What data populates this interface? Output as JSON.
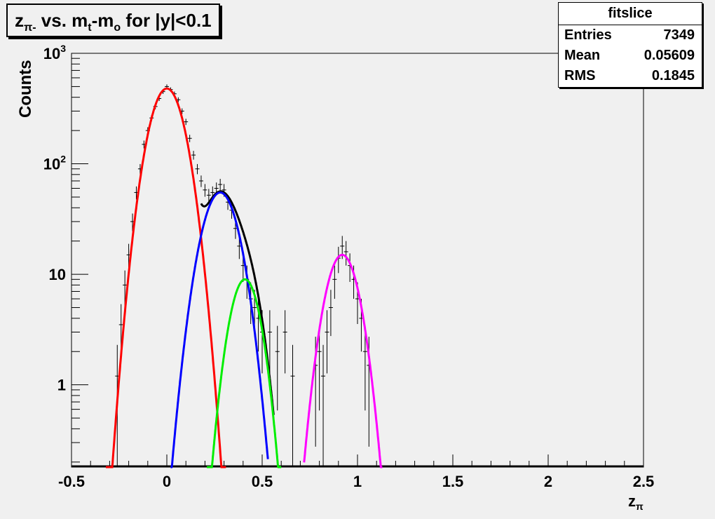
{
  "title": {
    "main": "z",
    "sub": "π-",
    "rest1": " vs. m",
    "sub2": "t",
    "rest2": "-m",
    "sub3": "o",
    "rest3": " for |y|<0.1"
  },
  "stats": {
    "name": "fitslice",
    "rows": [
      {
        "label": "Entries",
        "value": "7349"
      },
      {
        "label": "Mean",
        "value": "0.05609"
      },
      {
        "label": "RMS",
        "value": "0.1845"
      }
    ]
  },
  "chart_data": {
    "type": "line",
    "xlabel": "z",
    "xlabel_sub": "π",
    "ylabel": "Counts",
    "xlim": [
      -0.5,
      2.5
    ],
    "ylim": [
      0.18,
      1000
    ],
    "log_y": true,
    "x_ticks": [
      -0.5,
      0,
      0.5,
      1,
      1.5,
      2,
      2.5
    ],
    "x_tick_labels": [
      "-0.5",
      "0",
      "0.5",
      "1",
      "1.5",
      "2",
      "2.5"
    ],
    "y_ticks": [
      1,
      10,
      100,
      1000
    ],
    "y_tick_labels": [
      "1",
      "10",
      "10²",
      "10³"
    ],
    "series": [
      {
        "color": "#ff0000",
        "kind": "gaussian",
        "amplitude": 480,
        "mean": 0.0,
        "sigma": 0.072,
        "range": [
          -0.32,
          0.31
        ]
      },
      {
        "color": "#0000ff",
        "kind": "gaussian",
        "amplitude": 55,
        "mean": 0.28,
        "sigma": 0.075,
        "range": [
          0.02,
          0.53
        ]
      },
      {
        "color": "#00ee00",
        "kind": "gaussian",
        "amplitude": 9,
        "mean": 0.41,
        "sigma": 0.062,
        "range": [
          0.21,
          0.6
        ]
      },
      {
        "color": "#ff00ff",
        "kind": "gaussian",
        "amplitude": 15,
        "mean": 0.92,
        "sigma": 0.068,
        "range": [
          0.72,
          1.13
        ]
      },
      {
        "color": "#000000",
        "kind": "sum"
      }
    ],
    "points": [
      {
        "x": -0.26,
        "y": 1.2
      },
      {
        "x": -0.24,
        "y": 3.5
      },
      {
        "x": -0.22,
        "y": 8
      },
      {
        "x": -0.2,
        "y": 15
      },
      {
        "x": -0.18,
        "y": 30
      },
      {
        "x": -0.16,
        "y": 55
      },
      {
        "x": -0.14,
        "y": 90
      },
      {
        "x": -0.12,
        "y": 150
      },
      {
        "x": -0.1,
        "y": 200
      },
      {
        "x": -0.08,
        "y": 260
      },
      {
        "x": -0.06,
        "y": 330
      },
      {
        "x": -0.04,
        "y": 390
      },
      {
        "x": -0.02,
        "y": 450
      },
      {
        "x": 0.0,
        "y": 500
      },
      {
        "x": 0.02,
        "y": 470
      },
      {
        "x": 0.04,
        "y": 430
      },
      {
        "x": 0.06,
        "y": 380
      },
      {
        "x": 0.08,
        "y": 300
      },
      {
        "x": 0.1,
        "y": 240
      },
      {
        "x": 0.12,
        "y": 170
      },
      {
        "x": 0.14,
        "y": 120
      },
      {
        "x": 0.16,
        "y": 90
      },
      {
        "x": 0.18,
        "y": 70
      },
      {
        "x": 0.2,
        "y": 58
      },
      {
        "x": 0.22,
        "y": 52
      },
      {
        "x": 0.24,
        "y": 55
      },
      {
        "x": 0.26,
        "y": 60
      },
      {
        "x": 0.28,
        "y": 65
      },
      {
        "x": 0.3,
        "y": 58
      },
      {
        "x": 0.32,
        "y": 45
      },
      {
        "x": 0.34,
        "y": 38
      },
      {
        "x": 0.36,
        "y": 26
      },
      {
        "x": 0.38,
        "y": 18
      },
      {
        "x": 0.4,
        "y": 12
      },
      {
        "x": 0.42,
        "y": 9
      },
      {
        "x": 0.44,
        "y": 6
      },
      {
        "x": 0.46,
        "y": 5
      },
      {
        "x": 0.48,
        "y": 4
      },
      {
        "x": 0.5,
        "y": 3
      },
      {
        "x": 0.54,
        "y": 3
      },
      {
        "x": 0.58,
        "y": 2
      },
      {
        "x": 0.62,
        "y": 3
      },
      {
        "x": 0.66,
        "y": 1.2
      },
      {
        "x": 0.78,
        "y": 1.5
      },
      {
        "x": 0.8,
        "y": 2
      },
      {
        "x": 0.82,
        "y": 1.2
      },
      {
        "x": 0.84,
        "y": 3
      },
      {
        "x": 0.86,
        "y": 5
      },
      {
        "x": 0.88,
        "y": 9
      },
      {
        "x": 0.9,
        "y": 14
      },
      {
        "x": 0.92,
        "y": 18
      },
      {
        "x": 0.94,
        "y": 16
      },
      {
        "x": 0.96,
        "y": 12
      },
      {
        "x": 0.98,
        "y": 9
      },
      {
        "x": 1.0,
        "y": 6
      },
      {
        "x": 1.02,
        "y": 4
      },
      {
        "x": 1.04,
        "y": 2
      },
      {
        "x": 1.06,
        "y": 1.5
      }
    ]
  }
}
